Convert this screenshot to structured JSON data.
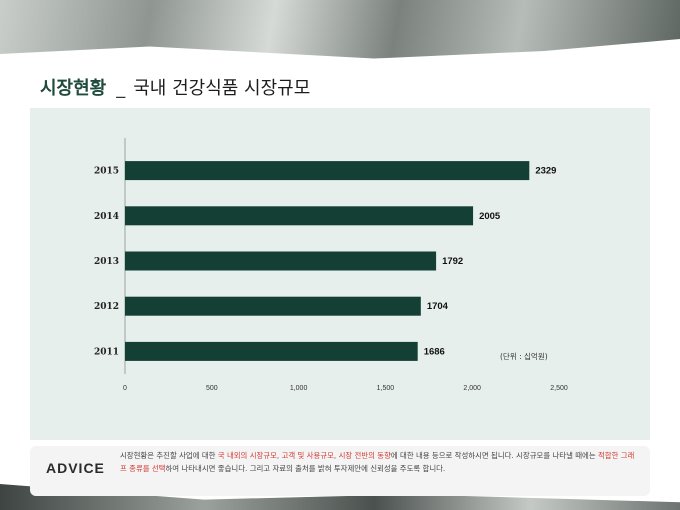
{
  "slide": {
    "title_main": "시장현황",
    "title_sep": "_",
    "title_sub": "국내 건강식품 시장규모"
  },
  "chart_data": {
    "type": "bar",
    "orientation": "horizontal",
    "categories": [
      "2015",
      "2014",
      "2013",
      "2012",
      "2011"
    ],
    "values": [
      2329,
      2005,
      1792,
      1704,
      1686
    ],
    "value_labels": [
      "2329",
      "2005",
      "1792",
      "1704",
      "1686"
    ],
    "xlim": [
      0,
      2500
    ],
    "x_ticks": [
      0,
      500,
      1000,
      1500,
      2000,
      2500
    ],
    "x_tick_labels": [
      "0",
      "500",
      "1,000",
      "1,500",
      "2,000",
      "2,500"
    ],
    "unit_note": "(단위 :  십억원)",
    "grid": false,
    "bar_color": "#133f35"
  },
  "advice": {
    "label": "ADVICE",
    "parts": [
      {
        "text": "시장현황은 추진할 사업에 대한 ",
        "highlight": false
      },
      {
        "text": "국 내외의 시장규모, 고객 및 사용규모, 시장 전반의 동향",
        "highlight": true
      },
      {
        "text": "에 대한 내용 등으로 작성하시면 됩니다. 시장규모를 나타낼 때에는 ",
        "highlight": false
      },
      {
        "text": "적합한 그래프 종류를 선택",
        "highlight": true
      },
      {
        "text": "하여 나타내시면 좋습니다. 그리고 자료의 출처를 밝혀 투자제안에 신뢰성을 주도록 합니다.",
        "highlight": false
      }
    ],
    "highlight_color": "#d23b35"
  }
}
